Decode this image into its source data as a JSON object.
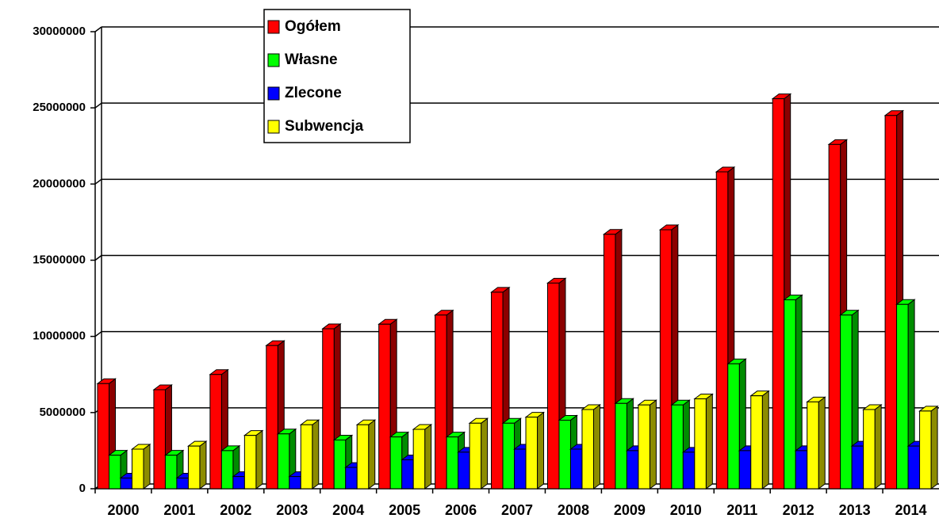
{
  "chart_data": {
    "type": "bar3d",
    "categories": [
      "2000",
      "2001",
      "2002",
      "2003",
      "2004",
      "2005",
      "2006",
      "2007",
      "2008",
      "2009",
      "2010",
      "2011",
      "2012",
      "2013",
      "2014"
    ],
    "series": [
      {
        "name": "Ogółem",
        "color": "#ff0000",
        "values": [
          6900000,
          6500000,
          7500000,
          9400000,
          10500000,
          10800000,
          11400000,
          12900000,
          13500000,
          16700000,
          17000000,
          20800000,
          25600000,
          22600000,
          24500000
        ]
      },
      {
        "name": "Własne",
        "color": "#00ff00",
        "values": [
          2200000,
          2200000,
          2500000,
          3600000,
          3200000,
          3400000,
          3400000,
          4300000,
          4500000,
          5600000,
          5500000,
          8200000,
          12400000,
          11400000,
          12100000
        ]
      },
      {
        "name": "Zlecone",
        "color": "#0000ff",
        "values": [
          700000,
          700000,
          800000,
          800000,
          1400000,
          1900000,
          2400000,
          2600000,
          2600000,
          2500000,
          2400000,
          2500000,
          2500000,
          2800000,
          2800000
        ]
      },
      {
        "name": "Subwencja",
        "color": "#ffff00",
        "values": [
          2600000,
          2800000,
          3500000,
          4200000,
          4200000,
          3900000,
          4300000,
          4700000,
          5200000,
          5500000,
          5900000,
          6100000,
          5700000,
          5200000,
          5100000
        ]
      }
    ],
    "ylim": [
      0,
      30000000
    ],
    "yticks": [
      0,
      5000000,
      10000000,
      15000000,
      20000000,
      25000000,
      30000000
    ],
    "grid": true,
    "legend": "top-left"
  }
}
